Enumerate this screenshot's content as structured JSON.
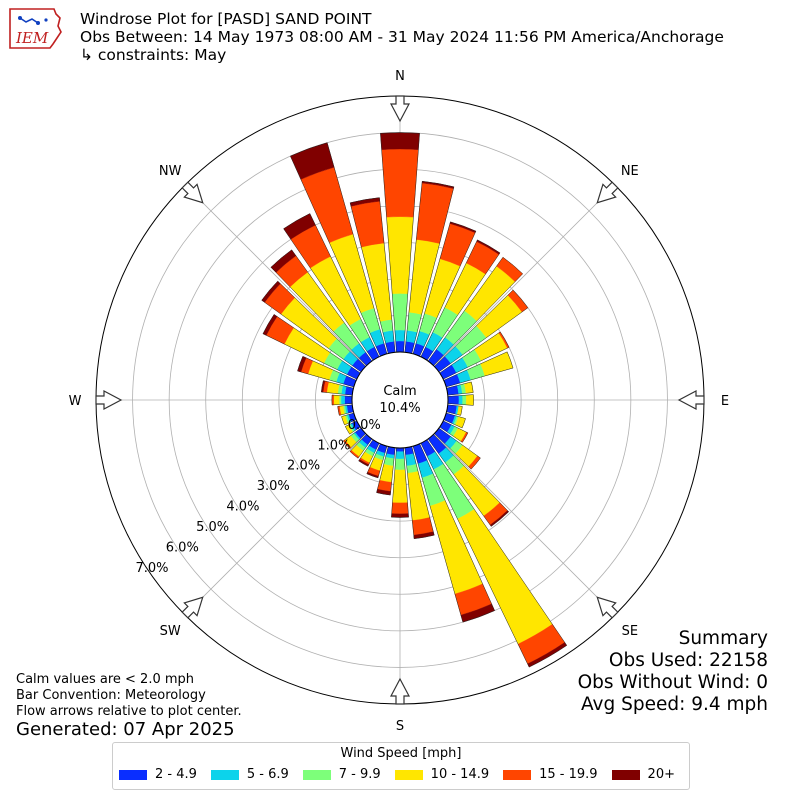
{
  "header": {
    "title": "Windrose Plot for [PASD] SAND POINT",
    "obs_between": "Obs Between: 14 May 1973 08:00 AM - 31 May 2024 11:56 PM America/Anchorage",
    "constraints": "↳ constraints: May",
    "logo_text": "IEM"
  },
  "notes": {
    "calm": "Calm values are < 2.0 mph",
    "convention": "Bar Convention: Meteorology",
    "flow": "Flow arrows relative to plot center.",
    "generated": "Generated: 07 Apr 2025"
  },
  "summary": {
    "title": "Summary",
    "obs_used": "Obs Used: 22158",
    "obs_without_wind": "Obs Without Wind: 0",
    "avg_speed": "Avg Speed: 9.4 mph"
  },
  "legend": {
    "title": "Wind Speed [mph]",
    "items": [
      {
        "label": "2 - 4.9",
        "color": "#0a2eff"
      },
      {
        "label": "5 - 6.9",
        "color": "#0cd3eb"
      },
      {
        "label": "7 - 9.9",
        "color": "#7dff7a"
      },
      {
        "label": "10 - 14.9",
        "color": "#ffe600"
      },
      {
        "label": "15 - 19.9",
        "color": "#ff4500"
      },
      {
        "label": "20+",
        "color": "#800000"
      }
    ]
  },
  "chart_data": {
    "type": "windrose",
    "calm": {
      "label": "Calm",
      "value": "10.4%"
    },
    "radial_ticks": [
      "0.0%",
      "1.0%",
      "2.0%",
      "3.0%",
      "4.0%",
      "5.0%",
      "6.0%",
      "7.0%"
    ],
    "radial_max": 7.0,
    "compass_labels": [
      "N",
      "NE",
      "E",
      "SE",
      "S",
      "SW",
      "W",
      "NW"
    ],
    "bins": [
      "2 - 4.9",
      "5 - 6.9",
      "7 - 9.9",
      "10 - 14.9",
      "15 - 19.9",
      "20+"
    ],
    "directions": [
      {
        "deg": 0,
        "values": [
          0.3,
          0.3,
          1.0,
          2.1,
          1.85,
          0.45
        ]
      },
      {
        "deg": 10,
        "values": [
          0.3,
          0.3,
          0.5,
          2.0,
          1.55,
          0.05
        ]
      },
      {
        "deg": 20,
        "values": [
          0.3,
          0.35,
          0.5,
          1.55,
          1.0,
          0.05
        ]
      },
      {
        "deg": 30,
        "values": [
          0.3,
          0.45,
          0.75,
          1.35,
          0.65,
          0.05
        ]
      },
      {
        "deg": 40,
        "values": [
          0.4,
          0.4,
          0.9,
          1.5,
          0.3,
          0.0
        ]
      },
      {
        "deg": 50,
        "values": [
          0.4,
          0.4,
          0.8,
          1.2,
          0.2,
          0.0
        ]
      },
      {
        "deg": 60,
        "values": [
          0.4,
          0.35,
          0.4,
          0.8,
          0.05,
          0.0
        ]
      },
      {
        "deg": 70,
        "values": [
          0.4,
          0.3,
          0.4,
          0.8,
          0.0,
          0.0
        ]
      },
      {
        "deg": 80,
        "values": [
          0.3,
          0.1,
          0.1,
          0.2,
          0.0,
          0.0
        ]
      },
      {
        "deg": 90,
        "values": [
          0.3,
          0.1,
          0.1,
          0.2,
          0.0,
          0.0
        ]
      },
      {
        "deg": 100,
        "values": [
          0.25,
          0.05,
          0.0,
          0.1,
          0.0,
          0.0
        ]
      },
      {
        "deg": 110,
        "values": [
          0.25,
          0.05,
          0.05,
          0.2,
          0.0,
          0.0
        ]
      },
      {
        "deg": 120,
        "values": [
          0.25,
          0.1,
          0.1,
          0.25,
          0.05,
          0.0
        ]
      },
      {
        "deg": 130,
        "values": [
          0.4,
          0.2,
          0.2,
          0.5,
          0.1,
          0.0
        ]
      },
      {
        "deg": 140,
        "values": [
          0.5,
          0.3,
          0.4,
          1.4,
          0.3,
          0.05
        ]
      },
      {
        "deg": 150,
        "values": [
          0.4,
          0.4,
          1.5,
          3.8,
          0.6,
          0.1
        ]
      },
      {
        "deg": 160,
        "values": [
          0.5,
          0.4,
          0.8,
          2.5,
          0.6,
          0.2
        ]
      },
      {
        "deg": 170,
        "values": [
          0.2,
          0.3,
          0.2,
          1.3,
          0.4,
          0.1
        ]
      },
      {
        "deg": 180,
        "values": [
          0.1,
          0.2,
          0.3,
          0.9,
          0.3,
          0.1
        ]
      },
      {
        "deg": 190,
        "values": [
          0.2,
          0.1,
          0.2,
          0.45,
          0.25,
          0.1
        ]
      },
      {
        "deg": 200,
        "values": [
          0.2,
          0.1,
          0.1,
          0.3,
          0.15,
          0.05
        ]
      },
      {
        "deg": 210,
        "values": [
          0.2,
          0.1,
          0.1,
          0.2,
          0.05,
          0.05
        ]
      },
      {
        "deg": 220,
        "values": [
          0.2,
          0.1,
          0.1,
          0.2,
          0.05,
          0.0
        ]
      },
      {
        "deg": 230,
        "values": [
          0.2,
          0.05,
          0.1,
          0.2,
          0.05,
          0.0
        ]
      },
      {
        "deg": 240,
        "values": [
          0.15,
          0.05,
          0.05,
          0.1,
          0.0,
          0.0
        ]
      },
      {
        "deg": 250,
        "values": [
          0.15,
          0.05,
          0.05,
          0.1,
          0.0,
          0.0
        ]
      },
      {
        "deg": 260,
        "values": [
          0.15,
          0.05,
          0.05,
          0.1,
          0.05,
          0.0
        ]
      },
      {
        "deg": 270,
        "values": [
          0.2,
          0.1,
          0.05,
          0.15,
          0.05,
          0.0
        ]
      },
      {
        "deg": 280,
        "values": [
          0.2,
          0.1,
          0.1,
          0.3,
          0.1,
          0.05
        ]
      },
      {
        "deg": 290,
        "values": [
          0.3,
          0.2,
          0.2,
          0.6,
          0.2,
          0.1
        ]
      },
      {
        "deg": 300,
        "values": [
          0.3,
          0.3,
          0.4,
          1.2,
          0.55,
          0.1
        ]
      },
      {
        "deg": 310,
        "values": [
          0.3,
          0.3,
          0.5,
          1.6,
          0.55,
          0.1
        ]
      },
      {
        "deg": 320,
        "values": [
          0.3,
          0.3,
          0.7,
          1.7,
          0.55,
          0.2
        ]
      },
      {
        "deg": 330,
        "values": [
          0.3,
          0.3,
          0.55,
          1.9,
          0.95,
          0.35
        ]
      },
      {
        "deg": 340,
        "values": [
          0.3,
          0.4,
          0.6,
          2.1,
          1.9,
          0.7
        ]
      },
      {
        "deg": 350,
        "values": [
          0.3,
          0.3,
          0.3,
          2.1,
          1.15,
          0.1
        ]
      }
    ]
  }
}
